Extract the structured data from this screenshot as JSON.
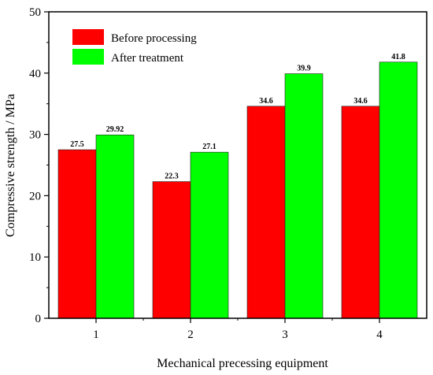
{
  "chart_data": {
    "type": "bar",
    "categories": [
      "1",
      "2",
      "3",
      "4"
    ],
    "series": [
      {
        "name": "Before processing",
        "color": "#ff0000",
        "values": [
          27.5,
          22.3,
          34.6,
          34.6
        ],
        "labels": [
          "27.5",
          "22.3",
          "34.6",
          "34.6"
        ]
      },
      {
        "name": "After treatment",
        "color": "#00ff00",
        "values": [
          29.92,
          27.1,
          39.9,
          41.8
        ],
        "labels": [
          "29.92",
          "27.1",
          "39.9",
          "41.8"
        ]
      }
    ],
    "xlabel": "Mechanical precessing equipment",
    "ylabel": "Compressive strength / MPa",
    "ylim": [
      0,
      50
    ],
    "yticks": [
      0,
      10,
      20,
      30,
      40,
      50
    ],
    "legend_position": "top-left",
    "grid": false
  }
}
